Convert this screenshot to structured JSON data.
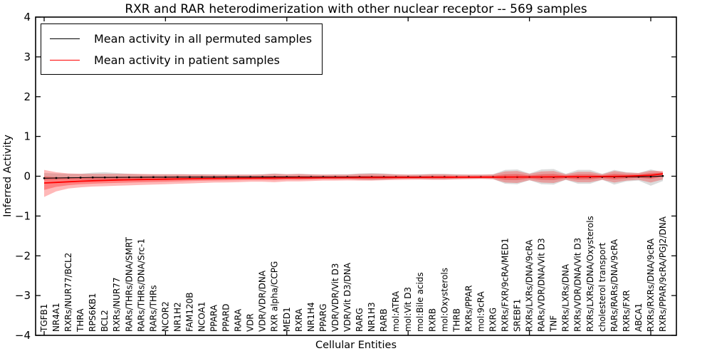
{
  "title": "RXR and RAR heterodimerization with other nuclear receptor -- 569 samples",
  "axes": {
    "ylabel": "Inferred Activity",
    "xlabel": "Cellular Entities",
    "ylim": [
      -4,
      4
    ],
    "yticks": [
      4,
      3,
      2,
      1,
      0,
      -1,
      -2,
      -3,
      -4
    ]
  },
  "legend": {
    "items": [
      {
        "label": "Mean activity in all permuted samples",
        "color": "#000000"
      },
      {
        "label": "Mean activity in patient samples",
        "color": "#ff0000"
      }
    ]
  },
  "colors": {
    "permuted_line": "#000000",
    "patient_line": "#ff0000",
    "permuted_band": "#999999",
    "patient_band": "#ff0000",
    "axis": "#000000"
  },
  "chart_data": {
    "type": "line",
    "title": "RXR and RAR heterodimerization with other nuclear receptor -- 569 samples",
    "xlabel": "Cellular Entities",
    "ylabel": "Inferred Activity",
    "ylim": [
      -4,
      4
    ],
    "yticks": [
      4,
      3,
      2,
      1,
      0,
      -1,
      -2,
      -3,
      -4
    ],
    "grid": false,
    "legend_position": "upper left",
    "categories": [
      "TGFB1",
      "NR4A1",
      "RXRs/NUR77/BCL2",
      "THRA",
      "RPS6KB1",
      "BCL2",
      "RXRs/NUR77",
      "RARs/THRs/DNA/SMRT",
      "RARs/THRs/DNA/Src-1",
      "RARs/THRs",
      "NCOR2",
      "NR1H2",
      "FAM120B",
      "NCOA1",
      "PPARA",
      "PPARD",
      "RARA",
      "VDR",
      "VDR/VDR/DNA",
      "RXR alpha/CCPG",
      "MED1",
      "RXRA",
      "NR1H4",
      "PPARG",
      "VDR/VDR/Vit D3",
      "VDR/Vit D3/DNA",
      "RARG",
      "NR1H3",
      "RARB",
      "mol:ATRA",
      "mol:Vit D3",
      "mol:Bile acids",
      "RXRB",
      "mol:Oxysterols",
      "THRB",
      "RXRs/PPAR",
      "mol:9cRA",
      "RXRG",
      "RXRs/FXR/9cRA/MED1",
      "SREBF1",
      "RXRs/LXRs/DNA/9cRA",
      "RARs/VDR/DNA/Vit D3",
      "TNF",
      "RXRs/LXRs/DNA",
      "RXRs/VDR/DNA/Vit D3",
      "RXRs/LXRs/DNA/Oxysterols",
      "cholesterol transport",
      "RARs/RARs/DNA/9cRA",
      "RXRs/FXR",
      "ABCA1",
      "RXRs/RXRs/DNA/9cRA",
      "RXRs/PPAR/9cRA/PGJ2/DNA"
    ],
    "series": [
      {
        "name": "Mean activity in all permuted samples",
        "color": "#000000",
        "values": [
          -0.05,
          -0.045,
          -0.04,
          -0.035,
          -0.03,
          -0.03,
          -0.028,
          -0.026,
          -0.025,
          -0.024,
          -0.023,
          -0.022,
          -0.022,
          -0.021,
          -0.021,
          -0.02,
          -0.02,
          -0.02,
          -0.02,
          -0.02,
          -0.02,
          -0.02,
          -0.02,
          -0.02,
          -0.02,
          -0.02,
          -0.02,
          -0.02,
          -0.02,
          -0.02,
          -0.02,
          -0.02,
          -0.02,
          -0.02,
          -0.02,
          -0.02,
          -0.02,
          -0.02,
          -0.022,
          -0.022,
          -0.02,
          -0.022,
          -0.022,
          -0.02,
          -0.02,
          -0.02,
          -0.018,
          -0.018,
          -0.015,
          -0.012,
          -0.01,
          0.005
        ],
        "band_upper": [
          0.08,
          0.07,
          0.06,
          0.06,
          0.09,
          0.1,
          0.08,
          0.06,
          0.05,
          0.05,
          0.05,
          0.05,
          0.05,
          0.05,
          0.05,
          0.04,
          0.04,
          0.04,
          0.05,
          0.07,
          0.05,
          0.06,
          0.05,
          0.04,
          0.05,
          0.05,
          0.07,
          0.08,
          0.07,
          0.05,
          0.04,
          0.05,
          0.06,
          0.06,
          0.05,
          0.04,
          0.04,
          0.05,
          0.16,
          0.17,
          0.07,
          0.17,
          0.18,
          0.06,
          0.16,
          0.16,
          0.06,
          0.16,
          0.1,
          0.08,
          0.17,
          0.1
        ],
        "band_lower": [
          -0.1,
          -0.09,
          -0.08,
          -0.08,
          -0.1,
          -0.11,
          -0.09,
          -0.08,
          -0.07,
          -0.07,
          -0.07,
          -0.07,
          -0.07,
          -0.06,
          -0.06,
          -0.06,
          -0.06,
          -0.06,
          -0.07,
          -0.09,
          -0.07,
          -0.08,
          -0.07,
          -0.06,
          -0.07,
          -0.07,
          -0.09,
          -0.1,
          -0.09,
          -0.07,
          -0.06,
          -0.07,
          -0.08,
          -0.08,
          -0.07,
          -0.06,
          -0.06,
          -0.07,
          -0.19,
          -0.2,
          -0.1,
          -0.2,
          -0.21,
          -0.09,
          -0.19,
          -0.19,
          -0.09,
          -0.21,
          -0.13,
          -0.11,
          -0.24,
          -0.12
        ]
      },
      {
        "name": "Mean activity in patient samples",
        "color": "#ff0000",
        "values": [
          -0.17,
          -0.155,
          -0.14,
          -0.125,
          -0.115,
          -0.105,
          -0.095,
          -0.09,
          -0.085,
          -0.08,
          -0.075,
          -0.07,
          -0.065,
          -0.06,
          -0.058,
          -0.055,
          -0.052,
          -0.05,
          -0.048,
          -0.045,
          -0.043,
          -0.04,
          -0.04,
          -0.038,
          -0.036,
          -0.035,
          -0.034,
          -0.033,
          -0.032,
          -0.03,
          -0.03,
          -0.028,
          -0.027,
          -0.026,
          -0.025,
          -0.025,
          -0.024,
          -0.023,
          -0.022,
          -0.02,
          -0.02,
          -0.018,
          -0.016,
          -0.015,
          -0.013,
          -0.01,
          -0.008,
          -0.005,
          0.0,
          0.01,
          0.025,
          0.06
        ],
        "band_upper": [
          0.16,
          0.1,
          0.07,
          0.06,
          0.06,
          0.06,
          0.06,
          0.06,
          0.055,
          0.05,
          0.05,
          0.05,
          0.045,
          0.045,
          0.04,
          0.04,
          0.04,
          0.04,
          0.045,
          0.06,
          0.05,
          0.055,
          0.045,
          0.04,
          0.04,
          0.04,
          0.055,
          0.06,
          0.055,
          0.045,
          0.04,
          0.04,
          0.05,
          0.05,
          0.04,
          0.04,
          0.04,
          0.045,
          0.12,
          0.13,
          0.06,
          0.12,
          0.13,
          0.05,
          0.11,
          0.11,
          0.05,
          0.13,
          0.09,
          0.08,
          0.14,
          0.13
        ],
        "band_lower": [
          -0.52,
          -0.38,
          -0.31,
          -0.28,
          -0.26,
          -0.25,
          -0.24,
          -0.23,
          -0.22,
          -0.21,
          -0.2,
          -0.19,
          -0.18,
          -0.17,
          -0.16,
          -0.155,
          -0.15,
          -0.14,
          -0.14,
          -0.15,
          -0.13,
          -0.13,
          -0.12,
          -0.11,
          -0.11,
          -0.105,
          -0.11,
          -0.11,
          -0.1,
          -0.095,
          -0.09,
          -0.085,
          -0.09,
          -0.09,
          -0.08,
          -0.075,
          -0.07,
          -0.075,
          -0.16,
          -0.17,
          -0.1,
          -0.16,
          -0.17,
          -0.09,
          -0.15,
          -0.15,
          -0.09,
          -0.16,
          -0.11,
          -0.09,
          -0.16,
          -0.08
        ]
      }
    ]
  }
}
